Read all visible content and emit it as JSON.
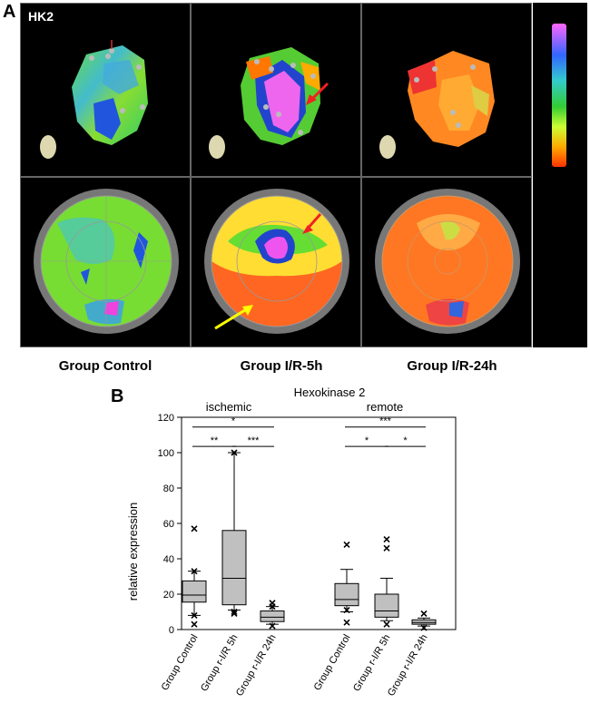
{
  "panel_a": {
    "letter": "A",
    "label": "HK2",
    "groups": [
      "Group Control",
      "Group I/R-5h",
      "Group I/R-24h"
    ]
  },
  "panel_b": {
    "letter": "B"
  },
  "chart_data": {
    "type": "box",
    "title": "Hexokinase 2",
    "ylabel": "relative expression",
    "ylim": [
      0,
      120
    ],
    "yticks": [
      0,
      20,
      40,
      60,
      80,
      100,
      120
    ],
    "panels": [
      {
        "label": "ischemic",
        "categories": [
          "Group Control",
          "Group r-I/R 5h",
          "Group r-I/R 24h"
        ],
        "boxes": [
          {
            "whisker_low": 8,
            "q1": 15.5,
            "median": 19.5,
            "q3": 27.5,
            "whisker_high": 33,
            "outliers": [
              57,
              33,
              8,
              3
            ]
          },
          {
            "whisker_low": 11,
            "q1": 14,
            "median": 29,
            "q3": 56,
            "whisker_high": 100,
            "outliers": [
              100,
              10,
              9
            ]
          },
          {
            "whisker_low": 3,
            "q1": 4.5,
            "median": 7,
            "q3": 10.5,
            "whisker_high": 13,
            "outliers": [
              15,
              13,
              2
            ]
          }
        ],
        "significance": [
          {
            "from": 0,
            "to": 2,
            "label": "*"
          },
          {
            "from": 0,
            "to": 1,
            "label": "**"
          },
          {
            "from": 1,
            "to": 2,
            "label": "***"
          }
        ]
      },
      {
        "label": "remote",
        "categories": [
          "Group Control",
          "Group r-I/R 5h",
          "Group r-I/R 24h"
        ],
        "boxes": [
          {
            "whisker_low": 10,
            "q1": 13.5,
            "median": 17,
            "q3": 26,
            "whisker_high": 34,
            "outliers": [
              48,
              11,
              4
            ]
          },
          {
            "whisker_low": 5,
            "q1": 7,
            "median": 10.5,
            "q3": 20,
            "whisker_high": 29,
            "outliers": [
              51,
              46,
              3
            ]
          },
          {
            "whisker_low": 2,
            "q1": 3,
            "median": 4,
            "q3": 5.5,
            "whisker_high": 6.5,
            "outliers": [
              9,
              1
            ]
          }
        ],
        "significance": [
          {
            "from": 0,
            "to": 2,
            "label": "***"
          },
          {
            "from": 0,
            "to": 1,
            "label": "*"
          },
          {
            "from": 1,
            "to": 2,
            "label": "*"
          }
        ]
      }
    ]
  }
}
